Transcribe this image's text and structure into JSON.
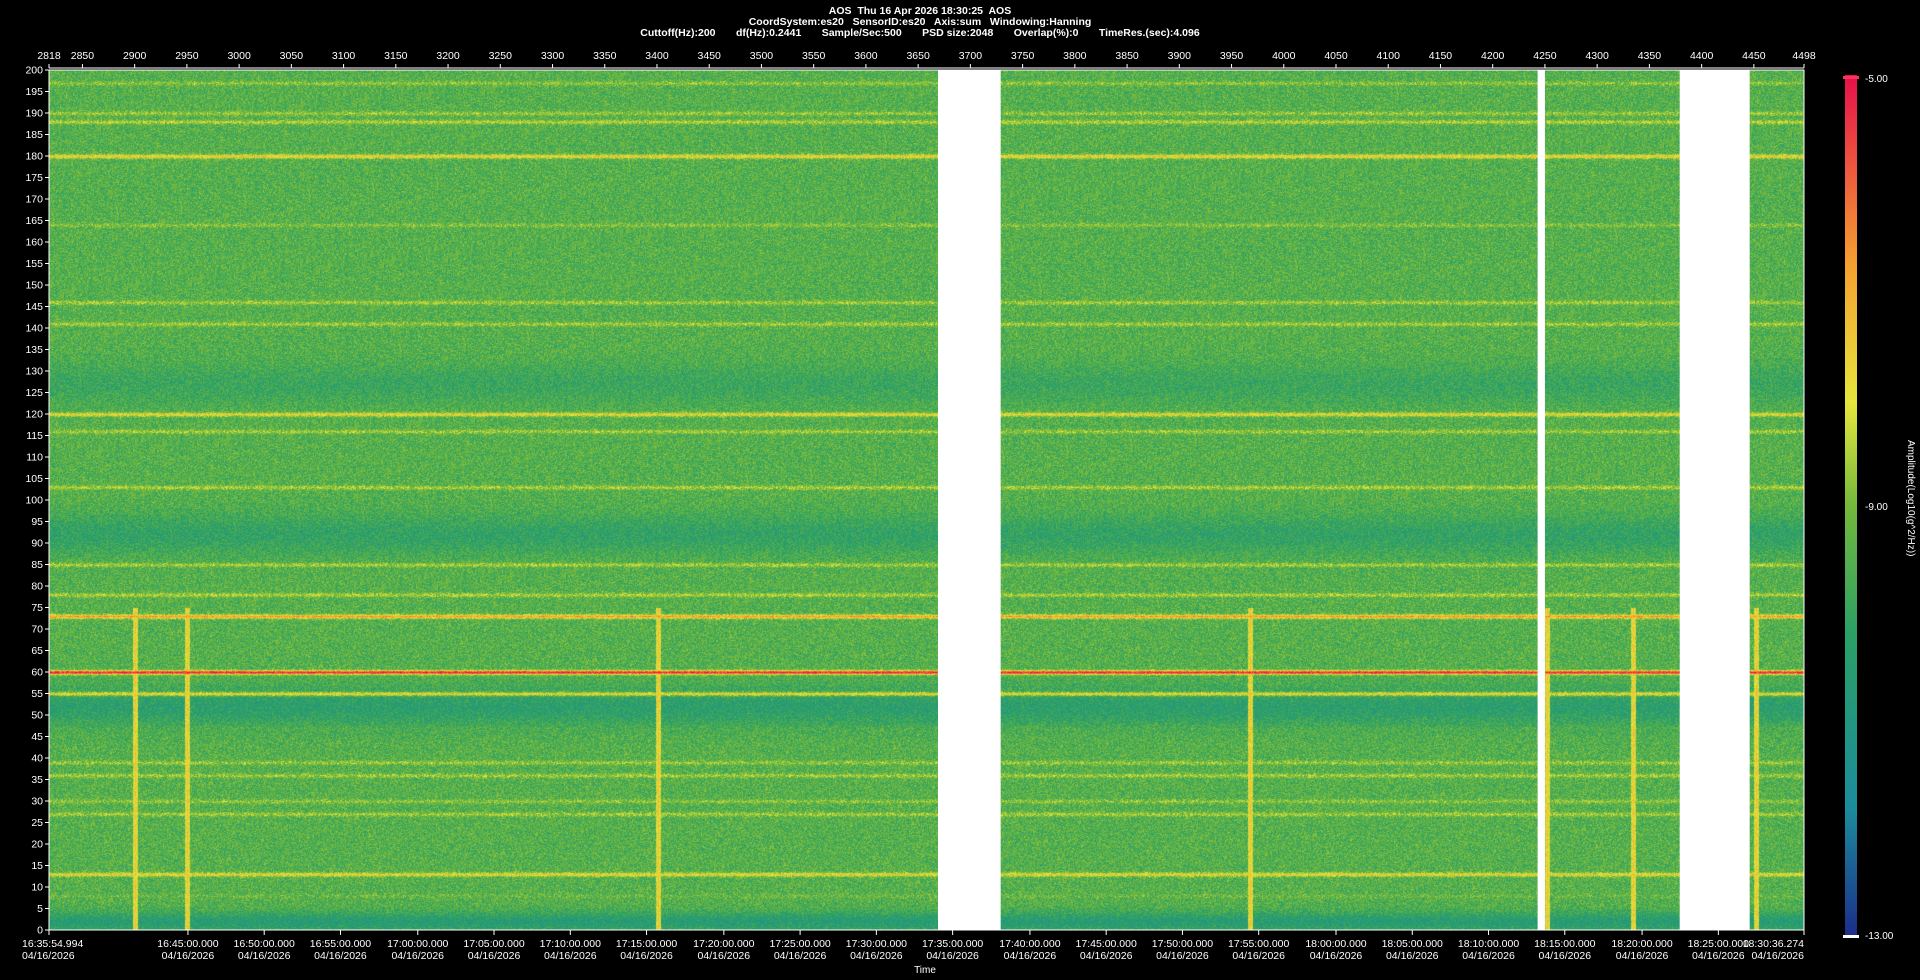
{
  "header": {
    "line1": "AOS  Thu 16 Apr 2026 18:30:25  AOS",
    "line2": "CoordSystem:es20   SensorID:es20   Axis:sum   Windowing:Hanning",
    "line3": "Cuttoff(Hz):200       df(Hz):0.2441       Sample/Sec:500       PSD size:2048       Overlap(%):0       TimeRes.(sec):4.096"
  },
  "chart_data": {
    "type": "heatmap",
    "title": "AOS  Thu 16 Apr 2026 18:30:25  AOS",
    "xlabel": "Time",
    "ylabel": "",
    "colorbar_label": "Amplitude(Log10(g^2/Hz))",
    "colorbar_ticks": [
      "-5.00",
      "-9.00",
      "-13.00"
    ],
    "clim": [
      -13,
      -5
    ],
    "ylim": [
      0,
      200
    ],
    "y_ticks": [
      200,
      195,
      190,
      185,
      180,
      175,
      170,
      165,
      160,
      155,
      150,
      145,
      140,
      135,
      130,
      125,
      120,
      115,
      110,
      105,
      100,
      95,
      90,
      85,
      80,
      75,
      70,
      65,
      60,
      55,
      50,
      45,
      40,
      35,
      30,
      25,
      20,
      15,
      10,
      5,
      0
    ],
    "top_axis_range": [
      2818,
      4498
    ],
    "top_axis_ticks": [
      "2818",
      "2850",
      "2900",
      "2950",
      "3000",
      "3050",
      "3100",
      "3150",
      "3200",
      "3250",
      "3300",
      "3350",
      "3400",
      "3450",
      "3500",
      "3550",
      "3600",
      "3650",
      "3700",
      "3750",
      "3800",
      "3850",
      "3900",
      "3950",
      "4000",
      "4050",
      "4100",
      "4150",
      "4200",
      "4250",
      "4300",
      "4350",
      "4400",
      "4450",
      "4498"
    ],
    "bottom_time_ticks": [
      {
        "time": "16:35:54.994",
        "date": "04/16/2026",
        "block": 2818
      },
      {
        "time": "16:45:00.000",
        "date": "04/16/2026",
        "block": 2951
      },
      {
        "time": "16:50:00.000",
        "date": "04/16/2026",
        "block": 3024
      },
      {
        "time": "16:55:00.000",
        "date": "04/16/2026",
        "block": 3097
      },
      {
        "time": "17:00:00.000",
        "date": "04/16/2026",
        "block": 3171
      },
      {
        "time": "17:05:00.000",
        "date": "04/16/2026",
        "block": 3244
      },
      {
        "time": "17:10:00.000",
        "date": "04/16/2026",
        "block": 3317
      },
      {
        "time": "17:15:00.000",
        "date": "04/16/2026",
        "block": 3390
      },
      {
        "time": "17:20:00.000",
        "date": "04/16/2026",
        "block": 3464
      },
      {
        "time": "17:25:00.000",
        "date": "04/16/2026",
        "block": 3537
      },
      {
        "time": "17:30:00.000",
        "date": "04/16/2026",
        "block": 3610
      },
      {
        "time": "17:35:00.000",
        "date": "04/16/2026",
        "block": 3683
      },
      {
        "time": "17:40:00.000",
        "date": "04/16/2026",
        "block": 3757
      },
      {
        "time": "17:45:00.000",
        "date": "04/16/2026",
        "block": 3830
      },
      {
        "time": "17:50:00.000",
        "date": "04/16/2026",
        "block": 3903
      },
      {
        "time": "17:55:00.000",
        "date": "04/16/2026",
        "block": 3976
      },
      {
        "time": "18:00:00.000",
        "date": "04/16/2026",
        "block": 4050
      },
      {
        "time": "18:05:00.000",
        "date": "04/16/2026",
        "block": 4123
      },
      {
        "time": "18:10:00.000",
        "date": "04/16/2026",
        "block": 4196
      },
      {
        "time": "18:15:00.000",
        "date": "04/16/2026",
        "block": 4269
      },
      {
        "time": "18:20:00.000",
        "date": "04/16/2026",
        "block": 4343
      },
      {
        "time": "18:25:00.000",
        "date": "04/16/2026",
        "block": 4416
      },
      {
        "time": "18:30:36.274",
        "date": "04/16/2026",
        "block": 4498
      }
    ],
    "data_gaps_blocks": [
      [
        3669,
        3729
      ],
      [
        4243,
        4250
      ],
      [
        4379,
        4446
      ]
    ],
    "background_level": -9.5,
    "frequency_bands": [
      {
        "hz": 2,
        "level": -10.6,
        "note": "low-frequency floor"
      },
      {
        "hz": 8,
        "level": -9.2
      },
      {
        "hz": 13,
        "level": -7.8
      },
      {
        "hz": 27,
        "level": -8.6
      },
      {
        "hz": 30,
        "level": -8.8
      },
      {
        "hz": 36,
        "level": -8.6
      },
      {
        "hz": 39,
        "level": -8.7
      },
      {
        "hz": 47,
        "level": -9.3
      },
      {
        "hz": 52,
        "level": -10.4,
        "note": "quiet band 45-55 Hz"
      },
      {
        "hz": 55,
        "level": -7.8
      },
      {
        "hz": 60,
        "level": -5.2,
        "note": "strongest line"
      },
      {
        "hz": 73,
        "level": -6.8
      },
      {
        "hz": 78,
        "level": -8.5
      },
      {
        "hz": 85,
        "level": -8.4
      },
      {
        "hz": 92,
        "level": -10.2,
        "note": "quiet band 85-100 Hz"
      },
      {
        "hz": 103,
        "level": -8.5
      },
      {
        "hz": 116,
        "level": -8.6
      },
      {
        "hz": 120,
        "level": -7.6
      },
      {
        "hz": 127,
        "level": -10.0,
        "note": "quiet band 124-132 Hz"
      },
      {
        "hz": 141,
        "level": -8.6
      },
      {
        "hz": 146,
        "level": -8.6
      },
      {
        "hz": 164,
        "level": -8.9
      },
      {
        "hz": 180,
        "level": -7.6
      },
      {
        "hz": 188,
        "level": -8.4
      },
      {
        "hz": 190,
        "level": -8.7
      },
      {
        "hz": 197,
        "level": -8.8
      }
    ],
    "transient_events_blocks": [
      2900,
      2950,
      3401,
      3968,
      4252,
      4334,
      4452
    ]
  }
}
